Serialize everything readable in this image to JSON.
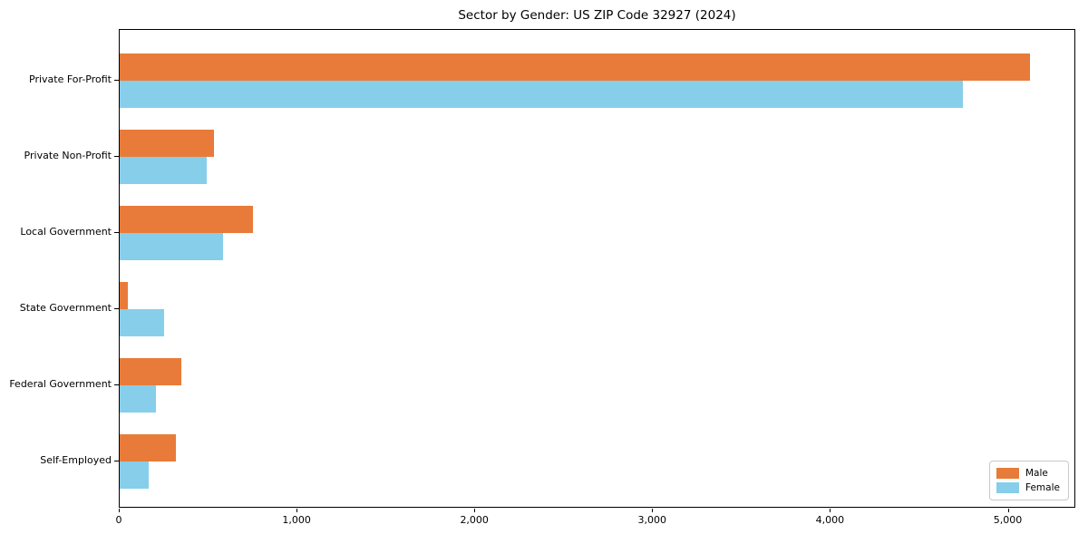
{
  "chart_data": {
    "type": "bar",
    "orientation": "horizontal",
    "title": "Sector by Gender: US ZIP Code 32927 (2024)",
    "categories": [
      "Private For-Profit",
      "Private Non-Profit",
      "Local Government",
      "State Government",
      "Federal Government",
      "Self-Employed"
    ],
    "series": [
      {
        "name": "Male",
        "color": "#e87b39",
        "values": [
          5120,
          530,
          750,
          45,
          345,
          315
        ]
      },
      {
        "name": "Female",
        "color": "#87ceeb",
        "values": [
          4740,
          490,
          580,
          250,
          205,
          165
        ]
      }
    ],
    "xlim": [
      0,
      5380
    ],
    "x_ticks": [
      {
        "value": 0,
        "label": "0"
      },
      {
        "value": 1000,
        "label": "1,000"
      },
      {
        "value": 2000,
        "label": "2,000"
      },
      {
        "value": 3000,
        "label": "3,000"
      },
      {
        "value": 4000,
        "label": "4,000"
      },
      {
        "value": 5000,
        "label": "5,000"
      }
    ],
    "xlabel": "",
    "ylabel": "",
    "grid": false,
    "legend": {
      "position": "lower right",
      "entries": [
        "Male",
        "Female"
      ]
    },
    "colors": {
      "axis": "#000000",
      "legend_border": "#c9c9c9",
      "background": "#ffffff"
    }
  }
}
